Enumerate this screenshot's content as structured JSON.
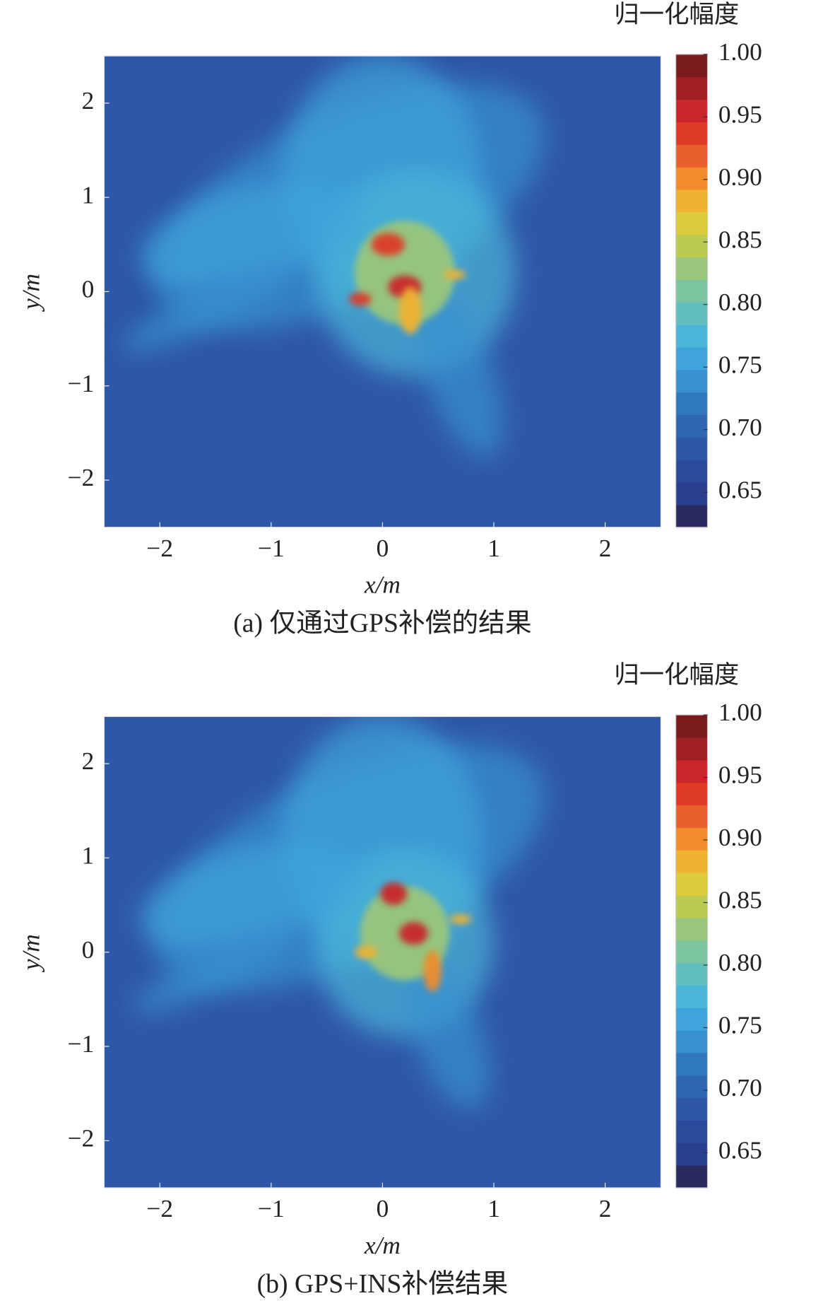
{
  "chart_data": [
    {
      "type": "heatmap",
      "caption": "(a) 仅通过GPS补偿的结果",
      "xlabel": "x/m",
      "ylabel": "y/m",
      "colorbar_title": "归一化幅度",
      "xlim": [
        -2.5,
        2.5
      ],
      "ylim": [
        -2.5,
        2.5
      ],
      "xticks": [
        {
          "value": -2,
          "label": "−2"
        },
        {
          "value": -1,
          "label": "−1"
        },
        0,
        1,
        2
      ],
      "yticks": [
        {
          "value": -2,
          "label": "−2"
        },
        {
          "value": -1,
          "label": "−1"
        },
        0,
        1,
        2
      ],
      "clim": [
        0.622,
        1.0
      ],
      "cticks": [
        {
          "value": 1,
          "label": "1.00"
        },
        0.95,
        {
          "value": 0.9,
          "label": "0.90"
        },
        0.85,
        {
          "value": 0.8,
          "label": "0.80"
        },
        0.75,
        {
          "value": 0.7,
          "label": "0.70"
        },
        0.65
      ],
      "colormap": [
        "#2a2a5e",
        "#2b3f8f",
        "#2c4a9c",
        "#2f57a8",
        "#2f66b3",
        "#2f78c0",
        "#3791d0",
        "#3fa4db",
        "#4cb6d8",
        "#62bfc0",
        "#7cc3a0",
        "#9ac67c",
        "#bccb50",
        "#dccb3a",
        "#f0b232",
        "#f08c2c",
        "#e8602a",
        "#de3a26",
        "#c8262a",
        "#a01f22",
        "#7a1a1c"
      ]
    },
    {
      "type": "heatmap",
      "caption": "(b) GPS+INS补偿结果",
      "xlabel": "x/m",
      "ylabel": "y/m",
      "colorbar_title": "归一化幅度",
      "xlim": [
        -2.5,
        2.5
      ],
      "ylim": [
        -2.5,
        2.5
      ],
      "xticks": [
        {
          "value": -2,
          "label": "−2"
        },
        {
          "value": -1,
          "label": "−1"
        },
        0,
        1,
        2
      ],
      "yticks": [
        {
          "value": -2,
          "label": "−2"
        },
        {
          "value": -1,
          "label": "−1"
        },
        0,
        1,
        2
      ],
      "clim": [
        0.622,
        1.0
      ],
      "cticks": [
        {
          "value": 1,
          "label": "1.00"
        },
        0.95,
        {
          "value": 0.9,
          "label": "0.90"
        },
        0.85,
        {
          "value": 0.8,
          "label": "0.80"
        },
        0.75,
        {
          "value": 0.7,
          "label": "0.70"
        },
        0.65
      ],
      "colormap": [
        "#2a2a5e",
        "#2b3f8f",
        "#2c4a9c",
        "#2f57a8",
        "#2f66b3",
        "#2f78c0",
        "#3791d0",
        "#3fa4db",
        "#4cb6d8",
        "#62bfc0",
        "#7cc3a0",
        "#9ac67c",
        "#bccb50",
        "#dccb3a",
        "#f0b232",
        "#f08c2c",
        "#e8602a",
        "#de3a26",
        "#c8262a",
        "#a01f22",
        "#7a1a1c"
      ]
    }
  ]
}
